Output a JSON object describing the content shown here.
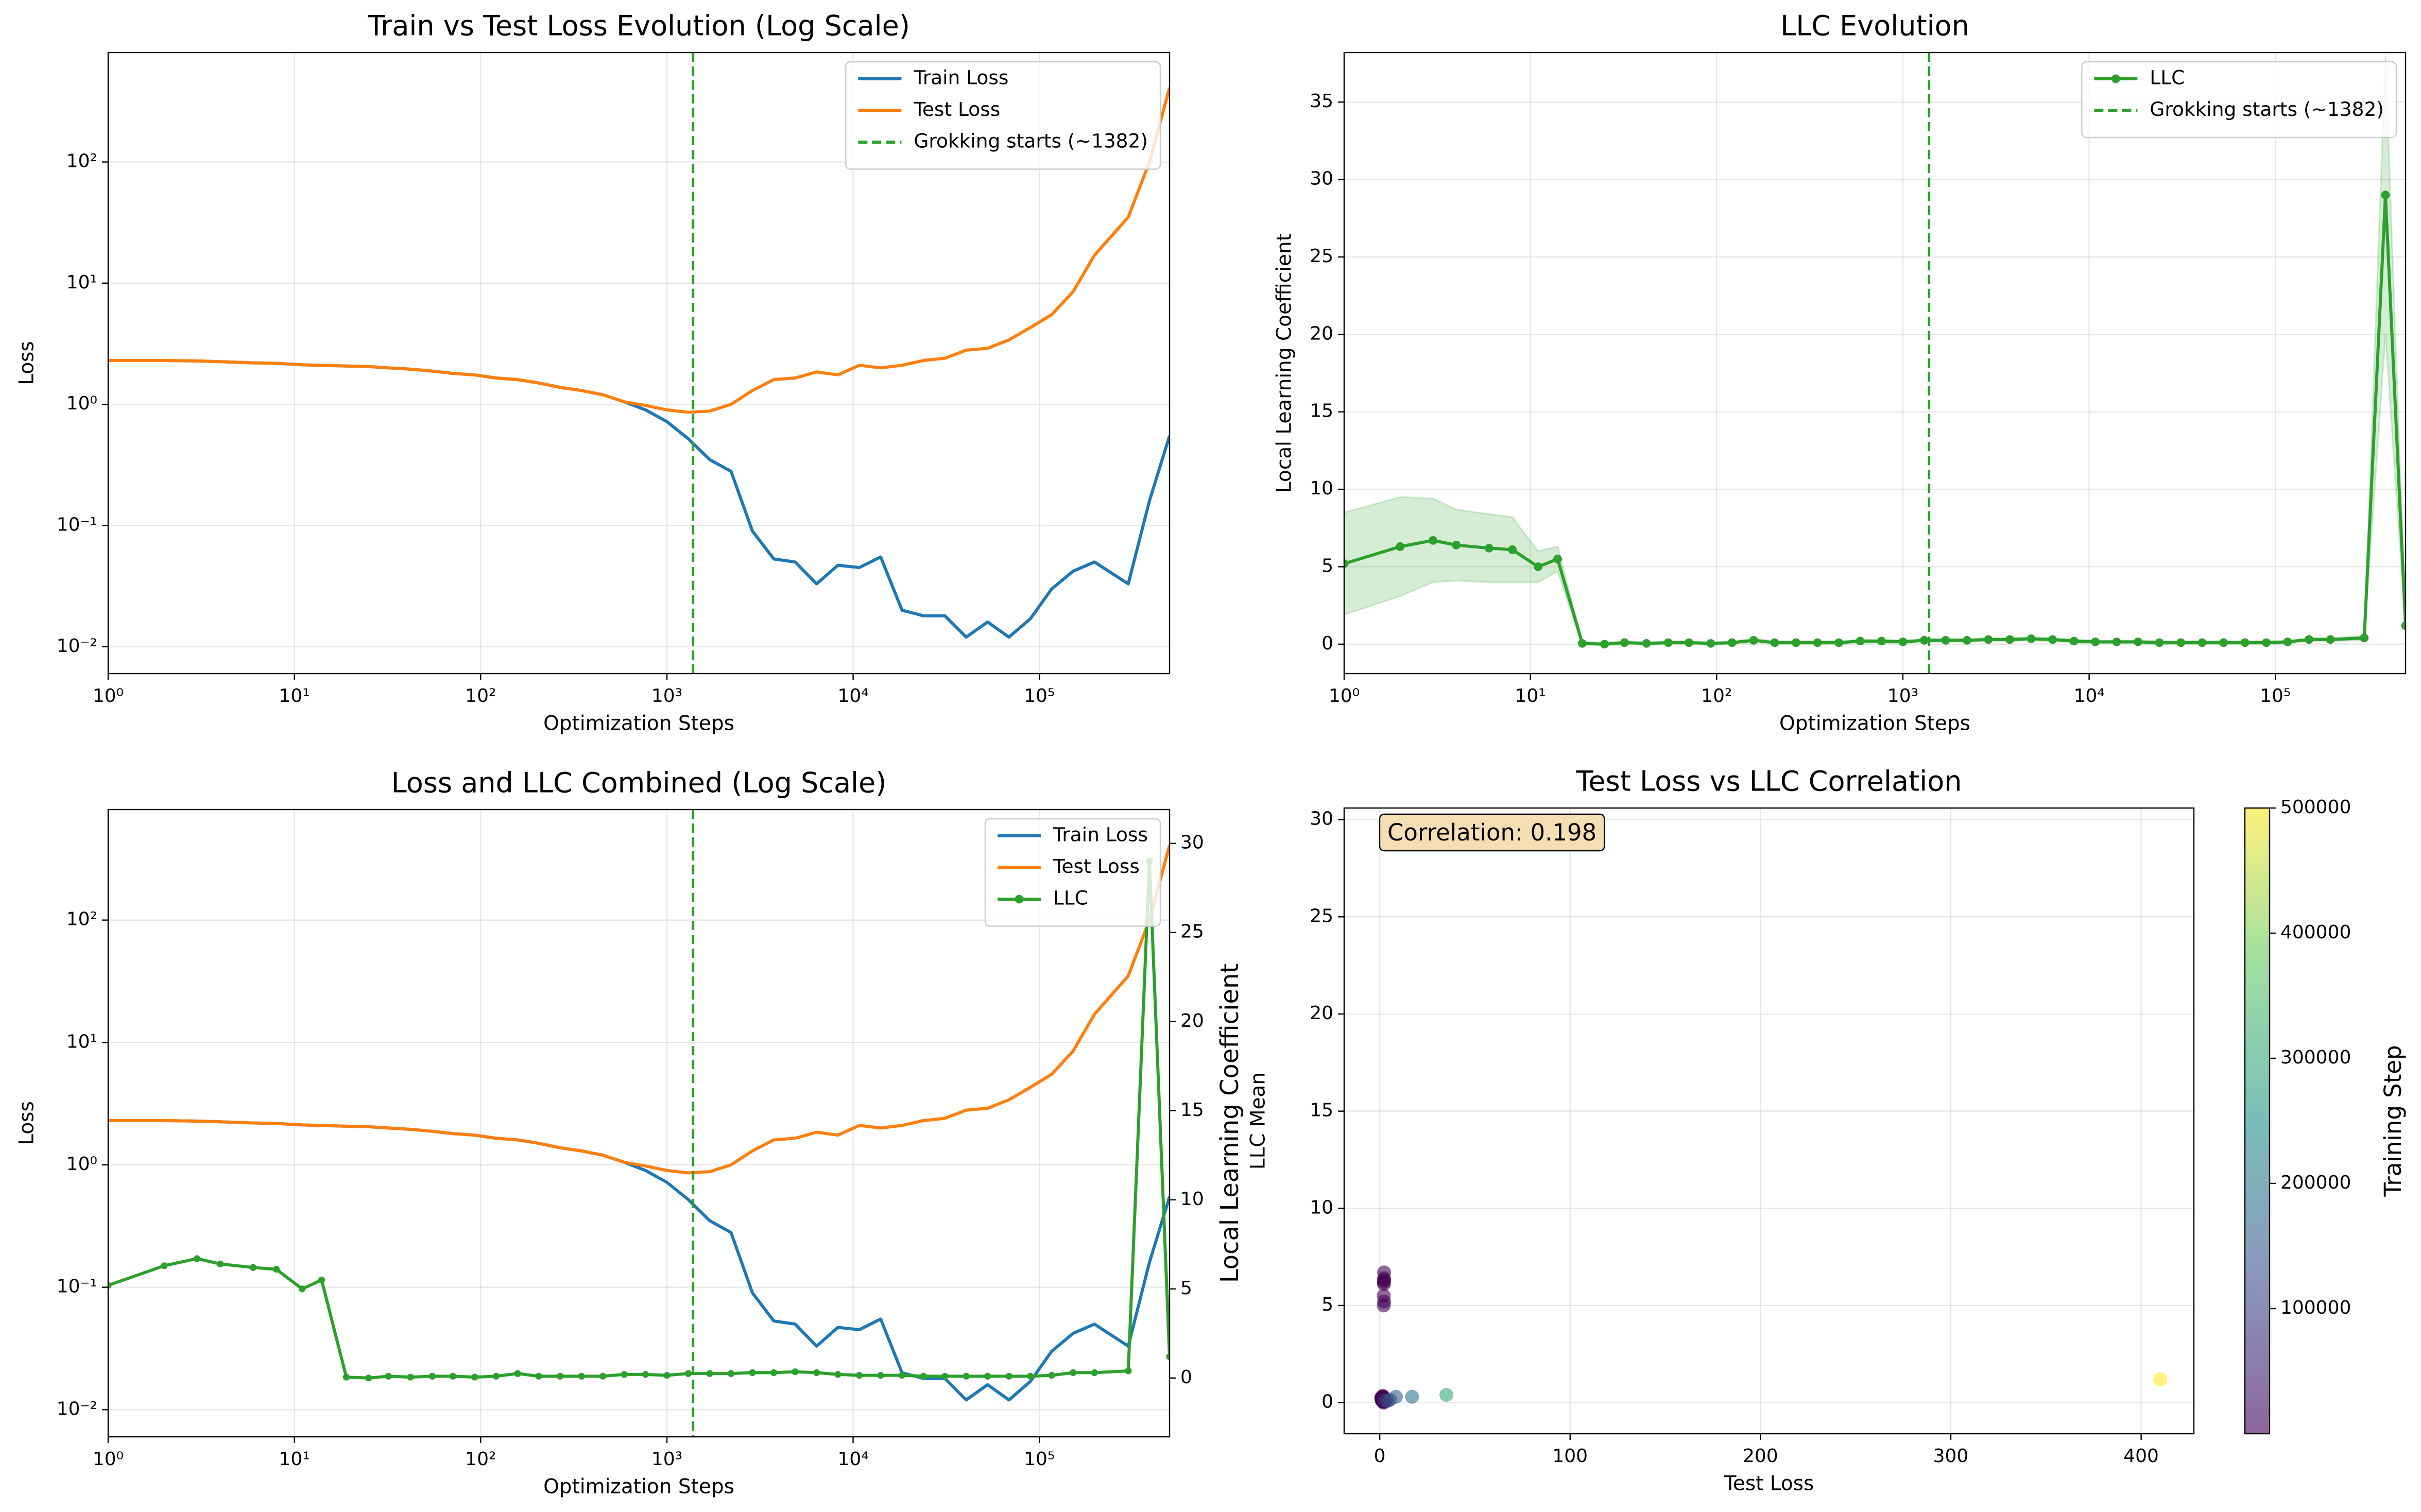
{
  "chart_data": [
    {
      "type": "line",
      "title": "Train vs Test Loss Evolution (Log Scale)",
      "x_label": "Optimization Steps",
      "y_label": "Loss",
      "x_scale": "log",
      "y_scale": "log",
      "grid": true,
      "legend": "upper right",
      "xlim": [
        1,
        500000
      ],
      "ylim": [
        0.006,
        800
      ],
      "xticks": [
        {
          "value": 1,
          "label": "10⁰"
        },
        {
          "value": 10,
          "label": "10¹"
        },
        {
          "value": 100,
          "label": "10²"
        },
        {
          "value": 1000,
          "label": "10³"
        },
        {
          "value": 10000,
          "label": "10⁴"
        },
        {
          "value": 100000,
          "label": "10⁵"
        }
      ],
      "yticks": [
        {
          "value": 0.01,
          "label": "10⁻²"
        },
        {
          "value": 0.1,
          "label": "10⁻¹"
        },
        {
          "value": 1,
          "label": "10⁰"
        },
        {
          "value": 10,
          "label": "10¹"
        },
        {
          "value": 100,
          "label": "10²"
        }
      ],
      "x": [
        1,
        2,
        3,
        4,
        6,
        8,
        11,
        14,
        19,
        25,
        32,
        42,
        55,
        71,
        93,
        121,
        158,
        205,
        267,
        348,
        453,
        590,
        768,
        1000,
        1303,
        1697,
        2210,
        2879,
        3750,
        4884,
        6362,
        8286,
        10793,
        14058,
        18311,
        23850,
        31064,
        40461,
        52701,
        68644,
        89410,
        116459,
        151691,
        197581,
        300000,
        390000,
        500000
      ],
      "series": [
        {
          "name": "Train Loss",
          "color": "#1f77b4",
          "values": [
            2.3,
            2.3,
            2.28,
            2.25,
            2.2,
            2.18,
            2.12,
            2.1,
            2.07,
            2.05,
            2.0,
            1.95,
            1.88,
            1.8,
            1.75,
            1.65,
            1.6,
            1.5,
            1.38,
            1.3,
            1.2,
            1.05,
            0.9,
            0.72,
            0.52,
            0.35,
            0.28,
            0.09,
            0.053,
            0.05,
            0.033,
            0.047,
            0.045,
            0.055,
            0.02,
            0.018,
            0.018,
            0.012,
            0.016,
            0.012,
            0.017,
            0.03,
            0.042,
            0.05,
            0.033,
            0.16,
            0.55
          ]
        },
        {
          "name": "Test Loss",
          "color": "#ff7f0e",
          "values": [
            2.3,
            2.3,
            2.28,
            2.25,
            2.2,
            2.18,
            2.12,
            2.1,
            2.07,
            2.05,
            2.0,
            1.95,
            1.88,
            1.8,
            1.75,
            1.65,
            1.6,
            1.5,
            1.38,
            1.3,
            1.2,
            1.05,
            0.98,
            0.9,
            0.86,
            0.88,
            1.0,
            1.3,
            1.6,
            1.65,
            1.85,
            1.75,
            2.1,
            2.0,
            2.1,
            2.3,
            2.4,
            2.8,
            2.9,
            3.4,
            4.3,
            5.5,
            8.5,
            17,
            35,
            100,
            410
          ]
        }
      ],
      "vline": {
        "x": 1382,
        "label": "Grokking starts (~1382)",
        "color": "#2ca02c"
      }
    },
    {
      "type": "line",
      "title": "LLC Evolution",
      "x_label": "Optimization Steps",
      "y_label": "Local Learning Coefficient",
      "x_scale": "log",
      "grid": true,
      "legend": "upper right",
      "xlim": [
        1,
        500000
      ],
      "ylim": [
        -1.9,
        38.2
      ],
      "xticks": [
        {
          "value": 1,
          "label": "10⁰"
        },
        {
          "value": 10,
          "label": "10¹"
        },
        {
          "value": 100,
          "label": "10²"
        },
        {
          "value": 1000,
          "label": "10³"
        },
        {
          "value": 10000,
          "label": "10⁴"
        },
        {
          "value": 100000,
          "label": "10⁵"
        }
      ],
      "yticks": [
        0,
        5,
        10,
        15,
        20,
        25,
        30,
        35
      ],
      "x": [
        1,
        2,
        3,
        4,
        6,
        8,
        11,
        14,
        19,
        25,
        32,
        42,
        55,
        71,
        93,
        121,
        158,
        205,
        267,
        348,
        453,
        590,
        768,
        1000,
        1303,
        1697,
        2210,
        2879,
        3750,
        4884,
        6362,
        8286,
        10793,
        14058,
        18311,
        23850,
        31064,
        40461,
        52701,
        68644,
        89410,
        116459,
        151691,
        197581,
        300000,
        390000,
        500000
      ],
      "series": [
        {
          "name": "LLC",
          "color": "#2ca02c",
          "marker": true,
          "values": [
            5.2,
            6.3,
            6.7,
            6.4,
            6.2,
            6.1,
            5.0,
            5.5,
            0.05,
            0.0,
            0.1,
            0.05,
            0.1,
            0.1,
            0.05,
            0.1,
            0.25,
            0.1,
            0.1,
            0.1,
            0.1,
            0.2,
            0.2,
            0.15,
            0.25,
            0.25,
            0.25,
            0.3,
            0.3,
            0.35,
            0.3,
            0.2,
            0.15,
            0.15,
            0.15,
            0.1,
            0.1,
            0.1,
            0.1,
            0.1,
            0.1,
            0.15,
            0.3,
            0.3,
            0.4,
            29,
            1.2
          ],
          "error": [
            3.3,
            3.2,
            2.7,
            2.3,
            2.2,
            2.1,
            1.0,
            0.8,
            0.1,
            0.1,
            0.1,
            0.1,
            0.1,
            0.1,
            0.1,
            0.1,
            0.1,
            0.1,
            0.1,
            0.1,
            0.1,
            0.1,
            0.1,
            0.1,
            0.1,
            0.1,
            0.1,
            0.1,
            0.1,
            0.1,
            0.1,
            0.1,
            0.1,
            0.1,
            0.1,
            0.1,
            0.1,
            0.1,
            0.1,
            0.1,
            0.1,
            0.1,
            0.1,
            0.1,
            0.15,
            9,
            0.3
          ]
        }
      ],
      "vline": {
        "x": 1382,
        "label": "Grokking starts (~1382)",
        "color": "#2ca02c"
      }
    },
    {
      "type": "line",
      "title": "Loss and LLC Combined (Log Scale)",
      "x_label": "Optimization Steps",
      "y_label": "Loss",
      "y2_label": "Local Learning Coefficient",
      "x_scale": "log",
      "y_scale": "log",
      "grid": true,
      "legend": "upper right",
      "xlim": [
        1,
        500000
      ],
      "ylim": [
        0.006,
        800
      ],
      "y2lim": [
        -3.3,
        31.9
      ],
      "xticks": [
        {
          "value": 1,
          "label": "10⁰"
        },
        {
          "value": 10,
          "label": "10¹"
        },
        {
          "value": 100,
          "label": "10²"
        },
        {
          "value": 1000,
          "label": "10³"
        },
        {
          "value": 10000,
          "label": "10⁴"
        },
        {
          "value": 100000,
          "label": "10⁵"
        }
      ],
      "yticks": [
        {
          "value": 0.01,
          "label": "10⁻²"
        },
        {
          "value": 0.1,
          "label": "10⁻¹"
        },
        {
          "value": 1,
          "label": "10⁰"
        },
        {
          "value": 10,
          "label": "10¹"
        },
        {
          "value": 100,
          "label": "10²"
        }
      ],
      "y2ticks": [
        0,
        5,
        10,
        15,
        20,
        25,
        30
      ],
      "x": [
        1,
        2,
        3,
        4,
        6,
        8,
        11,
        14,
        19,
        25,
        32,
        42,
        55,
        71,
        93,
        121,
        158,
        205,
        267,
        348,
        453,
        590,
        768,
        1000,
        1303,
        1697,
        2210,
        2879,
        3750,
        4884,
        6362,
        8286,
        10793,
        14058,
        18311,
        23850,
        31064,
        40461,
        52701,
        68644,
        89410,
        116459,
        151691,
        197581,
        300000,
        390000,
        500000
      ],
      "series": [
        {
          "name": "Train Loss",
          "color": "#1f77b4",
          "values": [
            2.3,
            2.3,
            2.28,
            2.25,
            2.2,
            2.18,
            2.12,
            2.1,
            2.07,
            2.05,
            2.0,
            1.95,
            1.88,
            1.8,
            1.75,
            1.65,
            1.6,
            1.5,
            1.38,
            1.3,
            1.2,
            1.05,
            0.9,
            0.72,
            0.52,
            0.35,
            0.28,
            0.09,
            0.053,
            0.05,
            0.033,
            0.047,
            0.045,
            0.055,
            0.02,
            0.018,
            0.018,
            0.012,
            0.016,
            0.012,
            0.017,
            0.03,
            0.042,
            0.05,
            0.033,
            0.16,
            0.55
          ]
        },
        {
          "name": "Test Loss",
          "color": "#ff7f0e",
          "values": [
            2.3,
            2.3,
            2.28,
            2.25,
            2.2,
            2.18,
            2.12,
            2.1,
            2.07,
            2.05,
            2.0,
            1.95,
            1.88,
            1.8,
            1.75,
            1.65,
            1.6,
            1.5,
            1.38,
            1.3,
            1.2,
            1.05,
            0.98,
            0.9,
            0.86,
            0.88,
            1.0,
            1.3,
            1.6,
            1.65,
            1.85,
            1.75,
            2.1,
            2.0,
            2.1,
            2.3,
            2.4,
            2.8,
            2.9,
            3.4,
            4.3,
            5.5,
            8.5,
            17,
            35,
            100,
            410
          ]
        },
        {
          "name": "LLC",
          "color": "#2ca02c",
          "marker": true,
          "axis": "y2",
          "values": [
            5.2,
            6.3,
            6.7,
            6.4,
            6.2,
            6.1,
            5.0,
            5.5,
            0.05,
            0.0,
            0.1,
            0.05,
            0.1,
            0.1,
            0.05,
            0.1,
            0.25,
            0.1,
            0.1,
            0.1,
            0.1,
            0.2,
            0.2,
            0.15,
            0.25,
            0.25,
            0.25,
            0.3,
            0.3,
            0.35,
            0.3,
            0.2,
            0.15,
            0.15,
            0.15,
            0.1,
            0.1,
            0.1,
            0.1,
            0.1,
            0.1,
            0.15,
            0.3,
            0.3,
            0.4,
            29,
            1.2
          ]
        }
      ],
      "vline": {
        "x": 1382,
        "color": "#2ca02c"
      }
    },
    {
      "type": "scatter",
      "title": "Test Loss vs LLC Correlation",
      "x_label": "Test Loss",
      "y_label": "LLC Mean",
      "grid": true,
      "xlim": [
        -18.7,
        427.7
      ],
      "ylim": [
        -1.6,
        30.6
      ],
      "xticks": [
        0,
        100,
        200,
        300,
        400
      ],
      "yticks": [
        0,
        5,
        10,
        15,
        20,
        25,
        30
      ],
      "annotation": "Correlation: 0.198",
      "x": [
        2.3,
        2.3,
        2.28,
        2.25,
        2.2,
        2.18,
        2.12,
        2.1,
        2.07,
        2.05,
        2.0,
        1.95,
        1.88,
        1.8,
        1.75,
        1.65,
        1.6,
        1.5,
        1.38,
        1.3,
        1.2,
        1.05,
        0.98,
        0.9,
        0.86,
        0.88,
        1.0,
        1.3,
        1.6,
        1.65,
        1.85,
        1.75,
        2.1,
        2.0,
        2.1,
        2.3,
        2.4,
        2.8,
        2.9,
        3.4,
        4.3,
        5.5,
        8.5,
        17,
        35,
        100,
        410
      ],
      "y": [
        5.2,
        6.3,
        6.7,
        6.4,
        6.2,
        6.1,
        5.0,
        5.5,
        0.05,
        0.0,
        0.1,
        0.05,
        0.1,
        0.1,
        0.05,
        0.1,
        0.25,
        0.1,
        0.1,
        0.1,
        0.1,
        0.2,
        0.2,
        0.15,
        0.25,
        0.25,
        0.25,
        0.3,
        0.3,
        0.35,
        0.3,
        0.2,
        0.15,
        0.15,
        0.15,
        0.1,
        0.1,
        0.1,
        0.1,
        0.1,
        0.1,
        0.15,
        0.3,
        0.3,
        0.4,
        29,
        1.2
      ],
      "c": [
        1,
        2,
        3,
        4,
        6,
        8,
        11,
        14,
        19,
        25,
        32,
        42,
        55,
        71,
        93,
        121,
        158,
        205,
        267,
        348,
        453,
        590,
        768,
        1000,
        1303,
        1697,
        2210,
        2879,
        3750,
        4884,
        6362,
        8286,
        10793,
        14058,
        18311,
        23850,
        31064,
        40461,
        52701,
        68644,
        89410,
        116459,
        151691,
        197581,
        300000,
        390000,
        500000
      ],
      "cmap": "viridis",
      "alpha": 0.6,
      "colorbar": {
        "label": "Training Step",
        "lim": [
          1,
          500000
        ],
        "ticks": [
          100000,
          200000,
          300000,
          400000,
          500000
        ]
      }
    }
  ]
}
